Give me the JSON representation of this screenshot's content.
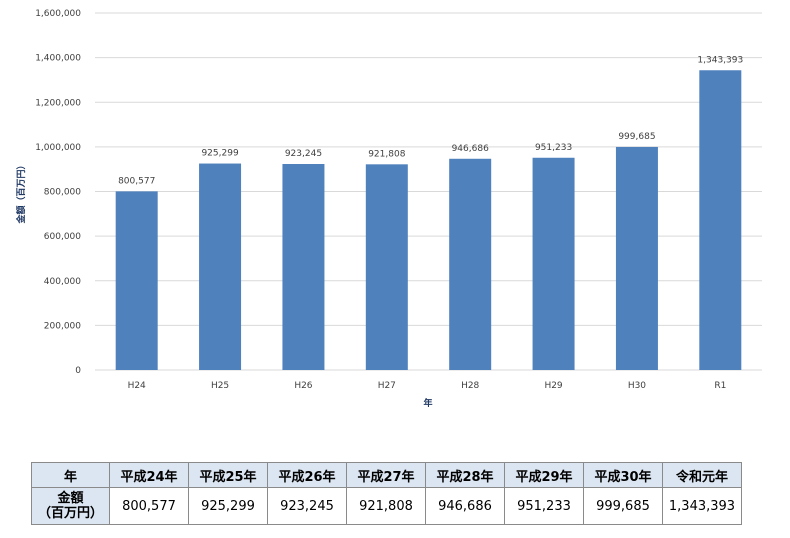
{
  "chart_data": {
    "type": "bar",
    "categories": [
      "H24",
      "H25",
      "H26",
      "H27",
      "H28",
      "H29",
      "H30",
      "R1"
    ],
    "values": [
      800577,
      925299,
      923245,
      921808,
      946686,
      951233,
      999685,
      1343393
    ],
    "data_labels": [
      "800,577",
      "925,299",
      "923,245",
      "921,808",
      "946,686",
      "951,233",
      "999,685",
      "1,343,393"
    ],
    "yticks": [
      "0",
      "200,000",
      "400,000",
      "600,000",
      "800,000",
      "1,000,000",
      "1,200,000",
      "1,400,000",
      "1,600,000"
    ],
    "ylim": [
      0,
      1600000
    ],
    "xlabel": "年",
    "ylabel": "金額（百万円）",
    "grid": true,
    "bar_color": "#4f81bd",
    "grid_color": "#d9d9d9"
  },
  "table": {
    "header_label": "年",
    "columns": [
      "平成24年",
      "平成25年",
      "平成26年",
      "平成27年",
      "平成28年",
      "平成29年",
      "平成30年",
      "令和元年"
    ],
    "row_label_line1": "金額",
    "row_label_line2": "（百万円）",
    "values": [
      "800,577",
      "925,299",
      "923,245",
      "921,808",
      "946,686",
      "951,233",
      "999,685",
      "1,343,393"
    ]
  }
}
